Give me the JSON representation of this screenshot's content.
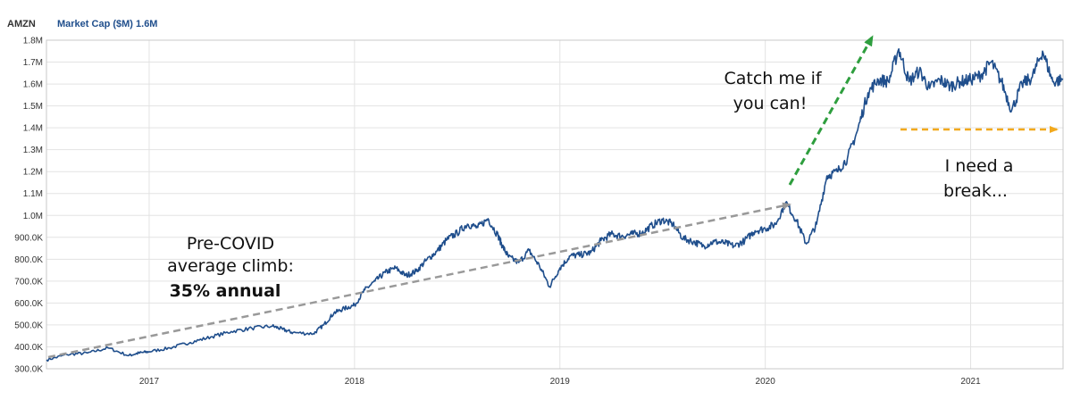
{
  "chart_data": {
    "type": "line",
    "ticker": "AMZN",
    "series_label": "Market Cap ($M) 1.6M",
    "ylim": [
      300,
      1800
    ],
    "y_unit": "$K",
    "yticks": [
      {
        "value": 300,
        "label": "300.0K"
      },
      {
        "value": 400,
        "label": "400.0K"
      },
      {
        "value": 500,
        "label": "500.0K"
      },
      {
        "value": 600,
        "label": "600.0K"
      },
      {
        "value": 700,
        "label": "700.0K"
      },
      {
        "value": 800,
        "label": "800.0K"
      },
      {
        "value": 900,
        "label": "900.0K"
      },
      {
        "value": 1000,
        "label": "1.0M"
      },
      {
        "value": 1100,
        "label": "1.1M"
      },
      {
        "value": 1200,
        "label": "1.2M"
      },
      {
        "value": 1300,
        "label": "1.3M"
      },
      {
        "value": 1400,
        "label": "1.4M"
      },
      {
        "value": 1500,
        "label": "1.5M"
      },
      {
        "value": 1600,
        "label": "1.6M"
      },
      {
        "value": 1700,
        "label": "1.7M"
      },
      {
        "value": 1800,
        "label": "1.8M"
      }
    ],
    "xlim": [
      2016.5,
      2021.45
    ],
    "xticks": [
      {
        "value": 2017,
        "label": "2017"
      },
      {
        "value": 2018,
        "label": "2018"
      },
      {
        "value": 2019,
        "label": "2019"
      },
      {
        "value": 2020,
        "label": "2020"
      },
      {
        "value": 2021,
        "label": "2021"
      }
    ],
    "grid": true,
    "line_color": "#1f4e8c",
    "series": [
      {
        "x": [
          2016.5,
          2016.6,
          2016.7,
          2016.8,
          2016.9,
          2016.95,
          2017.0,
          2017.1,
          2017.2,
          2017.3,
          2017.4,
          2017.5,
          2017.6,
          2017.65,
          2017.7,
          2017.8,
          2017.85,
          2017.9,
          2017.95,
          2018.0,
          2018.05,
          2018.1,
          2018.15,
          2018.2,
          2018.25,
          2018.3,
          2018.35,
          2018.4,
          2018.45,
          2018.5,
          2018.55,
          2018.6,
          2018.65,
          2018.7,
          2018.72,
          2018.75,
          2018.8,
          2018.85,
          2018.9,
          2018.95,
          2019.0,
          2019.05,
          2019.1,
          2019.15,
          2019.2,
          2019.25,
          2019.3,
          2019.35,
          2019.4,
          2019.45,
          2019.5,
          2019.55,
          2019.6,
          2019.65,
          2019.7,
          2019.75,
          2019.8,
          2019.85,
          2019.9,
          2019.95,
          2020.0,
          2020.05,
          2020.1,
          2020.15,
          2020.2,
          2020.25,
          2020.3,
          2020.35,
          2020.4,
          2020.45,
          2020.5,
          2020.55,
          2020.6,
          2020.65,
          2020.7,
          2020.75,
          2020.8,
          2020.85,
          2020.9,
          2020.95,
          2021.0,
          2021.05,
          2021.1,
          2021.15,
          2021.2,
          2021.25,
          2021.3,
          2021.35,
          2021.4,
          2021.45
        ],
        "y": [
          340,
          365,
          372,
          395,
          360,
          372,
          378,
          395,
          420,
          445,
          470,
          485,
          495,
          480,
          465,
          460,
          500,
          555,
          575,
          590,
          660,
          700,
          740,
          760,
          725,
          745,
          795,
          835,
          890,
          920,
          960,
          945,
          985,
          905,
          860,
          810,
          785,
          840,
          770,
          675,
          760,
          815,
          820,
          830,
          885,
          915,
          905,
          915,
          920,
          955,
          980,
          960,
          895,
          880,
          860,
          880,
          875,
          860,
          885,
          930,
          940,
          960,
          1060,
          980,
          870,
          960,
          1180,
          1200,
          1260,
          1390,
          1560,
          1620,
          1610,
          1760,
          1610,
          1660,
          1580,
          1620,
          1590,
          1610,
          1620,
          1640,
          1700,
          1610,
          1480,
          1600,
          1630,
          1750,
          1610,
          1620
        ]
      }
    ],
    "annotations": {
      "precovid_line1": "Pre-COVID",
      "precovid_line2": "average climb:",
      "precovid_line3": "35% annual",
      "catch_line1": "Catch me if",
      "catch_line2": "you can!",
      "break_line1": "I need a",
      "break_line2": "break..."
    },
    "arrow_colors": {
      "precovid": "#999999",
      "catch": "#2e9e3e",
      "break": "#f2a91d"
    }
  }
}
